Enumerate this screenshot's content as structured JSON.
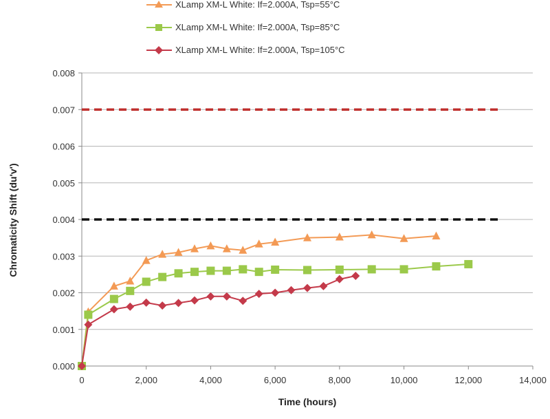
{
  "chart_data": {
    "type": "line",
    "title": "",
    "xlabel": "Time (hours)",
    "ylabel": "Chromaticity Shift (du'v')",
    "xlim": [
      0,
      14000
    ],
    "ylim": [
      0,
      0.008
    ],
    "x_ticks": [
      "0",
      "2,000",
      "4,000",
      "6,000",
      "8,000",
      "10,000",
      "12,000",
      "14,000"
    ],
    "y_ticks": [
      "0.000",
      "0.001",
      "0.002",
      "0.003",
      "0.004",
      "0.005",
      "0.006",
      "0.007",
      "0.008"
    ],
    "grid": "horizontal",
    "legend_position": "top",
    "reference_lines": [
      {
        "y": 0.007,
        "color": "#c0302e",
        "style": "dashed",
        "x_range": [
          0,
          13000
        ]
      },
      {
        "y": 0.004,
        "color": "#111111",
        "style": "dashed",
        "x_range": [
          0,
          13000
        ]
      }
    ],
    "series": [
      {
        "name": "XLamp XM-L White: If=2.000A, Tsp=55°C",
        "color": "#f39a55",
        "marker": "triangle",
        "x": [
          0,
          200,
          1000,
          1500,
          2000,
          2500,
          3000,
          3500,
          4000,
          4500,
          5000,
          5500,
          6000,
          7000,
          8000,
          9000,
          10000,
          11000
        ],
        "y": [
          0,
          0.00148,
          0.00218,
          0.00232,
          0.00288,
          0.00305,
          0.0031,
          0.0032,
          0.00328,
          0.0032,
          0.00316,
          0.00333,
          0.00338,
          0.0035,
          0.00352,
          0.00358,
          0.00348,
          0.00355
        ]
      },
      {
        "name": "XLamp XM-L White: If=2.000A, Tsp=85°C",
        "color": "#9bc94a",
        "marker": "square",
        "x": [
          0,
          200,
          1000,
          1500,
          2000,
          2500,
          3000,
          3500,
          4000,
          4500,
          5000,
          5500,
          6000,
          7000,
          8000,
          9000,
          10000,
          11000,
          12000
        ],
        "y": [
          0,
          0.0014,
          0.00183,
          0.00205,
          0.0023,
          0.00243,
          0.00253,
          0.00257,
          0.0026,
          0.0026,
          0.00264,
          0.00257,
          0.00263,
          0.00262,
          0.00263,
          0.00264,
          0.00264,
          0.00272,
          0.00278
        ]
      },
      {
        "name": "XLamp XM-L White: If=2.000A, Tsp=105°C",
        "color": "#c43a4a",
        "marker": "diamond",
        "x": [
          0,
          200,
          1000,
          1500,
          2000,
          2500,
          3000,
          3500,
          4000,
          4500,
          5000,
          5500,
          6000,
          6500,
          7000,
          7500,
          8000,
          8500
        ],
        "y": [
          0,
          0.00113,
          0.00155,
          0.00162,
          0.00173,
          0.00165,
          0.00172,
          0.00179,
          0.0019,
          0.0019,
          0.00178,
          0.00197,
          0.002,
          0.00207,
          0.00213,
          0.00218,
          0.00237,
          0.00246
        ]
      }
    ]
  }
}
